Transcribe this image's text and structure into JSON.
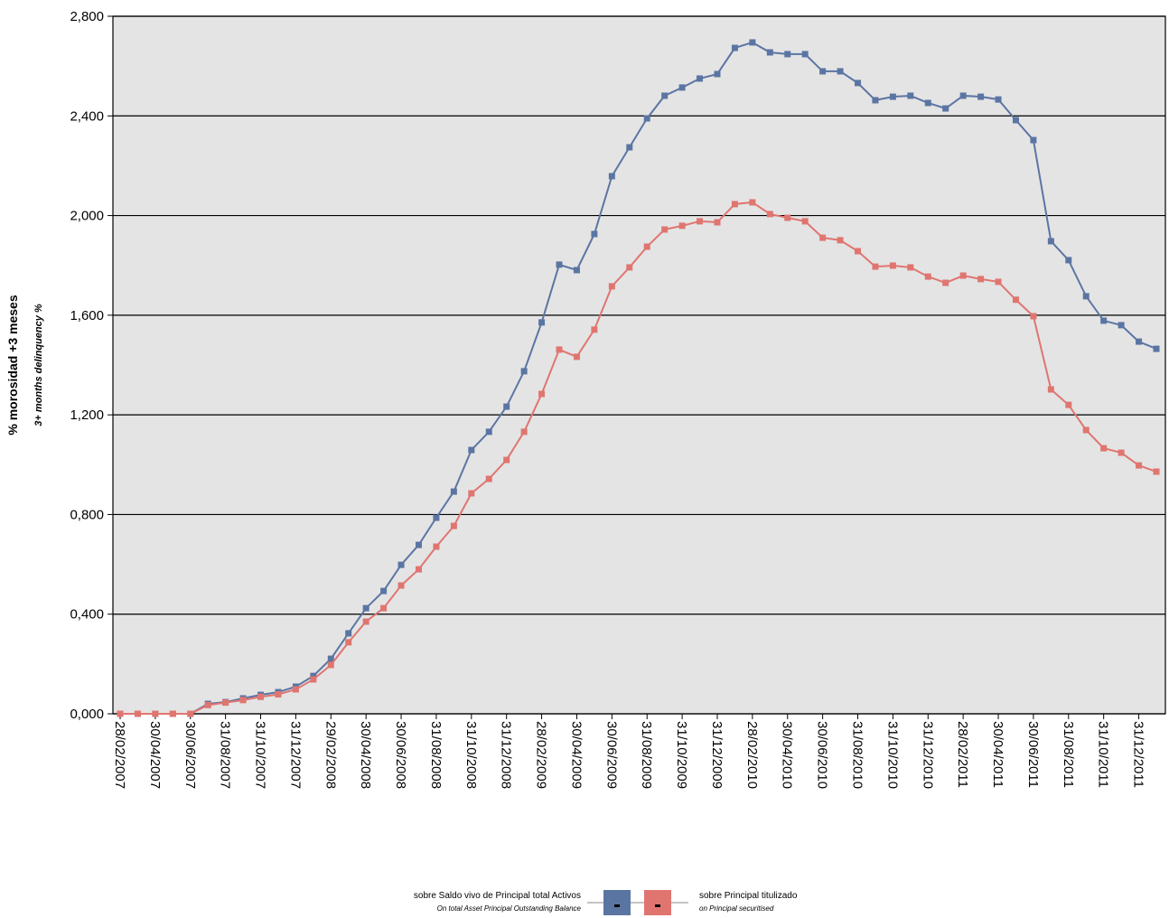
{
  "chart_data": {
    "type": "line",
    "y_title": "% morosidad +3 meses",
    "y_subtitle": "3+ months delinquency %",
    "categories": [
      "28/02/2007",
      null,
      "30/04/2007",
      null,
      "30/06/2007",
      null,
      "31/08/2007",
      null,
      "31/10/2007",
      null,
      "31/12/2007",
      null,
      "29/02/2008",
      null,
      "30/04/2008",
      null,
      "30/06/2008",
      null,
      "31/08/2008",
      null,
      "31/10/2008",
      null,
      "31/12/2008",
      null,
      "28/02/2009",
      null,
      "30/04/2009",
      null,
      "30/06/2009",
      null,
      "31/08/2009",
      null,
      "31/10/2009",
      null,
      "31/12/2009",
      null,
      "28/02/2010",
      null,
      "30/04/2010",
      null,
      "30/06/2010",
      null,
      "31/08/2010",
      null,
      "31/10/2010",
      null,
      "31/12/2010",
      null,
      "28/02/2011",
      null,
      "30/04/2011",
      null,
      "30/06/2011",
      null,
      "31/08/2011",
      null,
      "31/10/2011",
      null,
      "31/12/2011",
      null
    ],
    "series": [
      {
        "name": "sobre Saldo vivo de Principal total Activos",
        "subtitle": "On total Asset Principal Outstanding Balance",
        "color": "#5b75a3",
        "values": [
          0,
          0,
          0,
          0,
          0,
          0.04,
          0.047,
          0.062,
          0.076,
          0.087,
          0.109,
          0.152,
          0.221,
          0.323,
          0.424,
          0.493,
          0.598,
          0.678,
          0.787,
          0.892,
          1.059,
          1.132,
          1.233,
          1.375,
          1.571,
          1.803,
          1.781,
          1.926,
          2.158,
          2.274,
          2.39,
          2.481,
          2.514,
          2.55,
          2.568,
          2.673,
          2.695,
          2.655,
          2.648,
          2.648,
          2.579,
          2.579,
          2.532,
          2.463,
          2.477,
          2.481,
          2.452,
          2.43,
          2.481,
          2.477,
          2.466,
          2.383,
          2.303,
          1.897,
          1.821,
          1.676,
          1.578,
          1.56,
          1.494,
          1.465
        ]
      },
      {
        "name": "sobre Principal titulizado",
        "subtitle": "on Principal securitised",
        "color": "#e07570",
        "values": [
          0,
          0,
          0,
          0,
          0,
          0.035,
          0.045,
          0.055,
          0.068,
          0.078,
          0.098,
          0.138,
          0.196,
          0.287,
          0.37,
          0.424,
          0.515,
          0.58,
          0.671,
          0.754,
          0.885,
          0.943,
          1.019,
          1.132,
          1.284,
          1.462,
          1.433,
          1.542,
          1.716,
          1.792,
          1.875,
          1.944,
          1.959,
          1.977,
          1.973,
          2.046,
          2.053,
          2.006,
          1.991,
          1.977,
          1.911,
          1.901,
          1.857,
          1.795,
          1.799,
          1.792,
          1.755,
          1.73,
          1.759,
          1.745,
          1.734,
          1.662,
          1.596,
          1.302,
          1.24,
          1.139,
          1.066,
          1.048,
          0.997,
          0.972
        ]
      }
    ],
    "ylim": [
      0,
      2.8
    ],
    "yticks": [
      {
        "value": 0,
        "label": "0,000"
      },
      {
        "value": 0.4,
        "label": "0,400"
      },
      {
        "value": 0.8,
        "label": "0,800"
      },
      {
        "value": 1.2,
        "label": "1,200"
      },
      {
        "value": 1.6,
        "label": "1,600"
      },
      {
        "value": 2.0,
        "label": "2,000"
      },
      {
        "value": 2.4,
        "label": "2,400"
      },
      {
        "value": 2.8,
        "label": "2,800"
      }
    ],
    "grid": true,
    "plot_background": "#e4e4e4",
    "legend": "bottom"
  }
}
